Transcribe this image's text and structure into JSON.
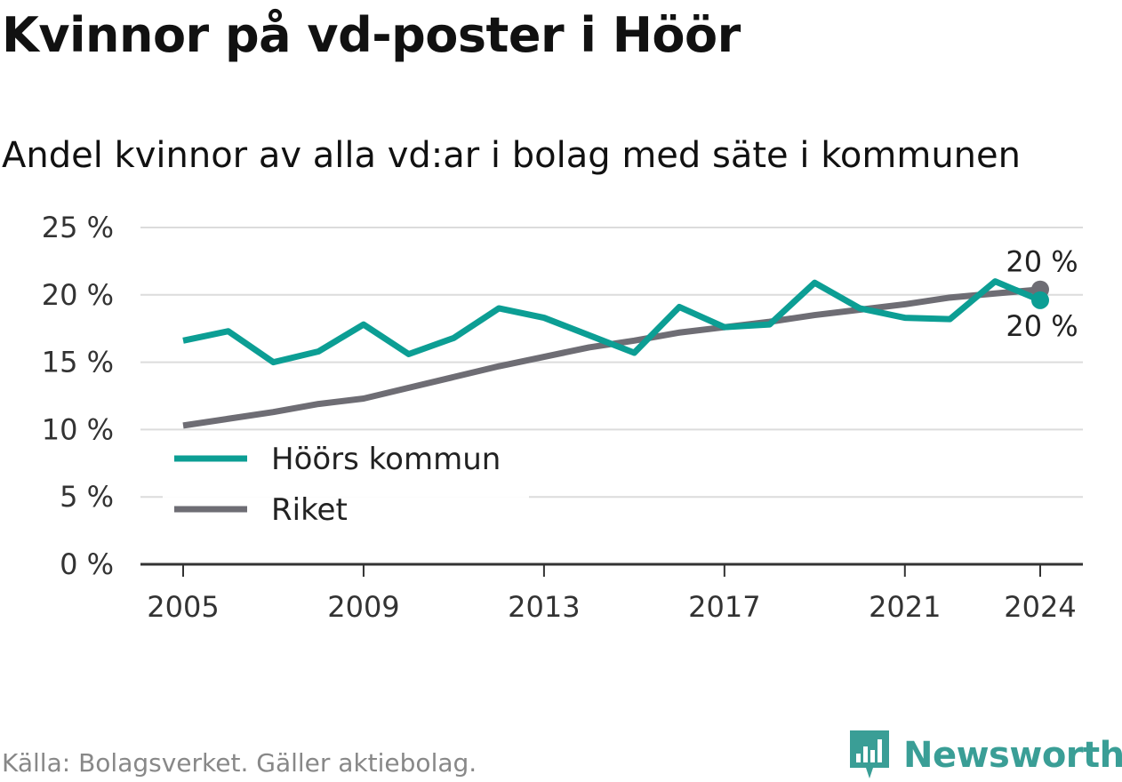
{
  "title": "Kvinnor på vd-poster i Höör",
  "subtitle": "Andel kvinnor av alla vd:ar i bolag med säte i kommunen",
  "source": "Källa: Bolagsverket. Gäller aktiebolag.",
  "logo": {
    "text": "Newsworthy",
    "icon": "bar-chart-icon",
    "color": "#3a9e96"
  },
  "chart_data": {
    "type": "line",
    "x": [
      2005,
      2006,
      2007,
      2008,
      2009,
      2010,
      2011,
      2012,
      2013,
      2014,
      2015,
      2016,
      2017,
      2018,
      2019,
      2020,
      2021,
      2022,
      2023,
      2024
    ],
    "x_ticks": [
      2005,
      2009,
      2013,
      2017,
      2021,
      2024
    ],
    "x_tick_labels": [
      "2005",
      "2009",
      "2013",
      "2017",
      "2021",
      "2024"
    ],
    "y_ticks": [
      0,
      5,
      10,
      15,
      20,
      25
    ],
    "y_tick_labels": [
      "0 %",
      "5 %",
      "10 %",
      "15 %",
      "20 %",
      "25 %"
    ],
    "ylim": [
      0,
      25
    ],
    "grid": "horizontal",
    "legend_position": "lower-left",
    "series": [
      {
        "name": "Höörs kommun",
        "color": "#0c9e94",
        "values": [
          16.6,
          17.3,
          15.0,
          15.8,
          17.8,
          15.6,
          16.8,
          19.0,
          18.3,
          17.0,
          15.7,
          19.1,
          17.6,
          17.8,
          20.9,
          19.0,
          18.3,
          18.2,
          21.0,
          19.6
        ],
        "end_label": "20 %"
      },
      {
        "name": "Riket",
        "color": "#6e6d74",
        "values": [
          10.3,
          10.8,
          11.3,
          11.9,
          12.3,
          13.1,
          13.9,
          14.7,
          15.4,
          16.1,
          16.6,
          17.2,
          17.6,
          18.0,
          18.5,
          18.9,
          19.3,
          19.8,
          20.1,
          20.4
        ],
        "end_label": "20 %"
      }
    ]
  }
}
